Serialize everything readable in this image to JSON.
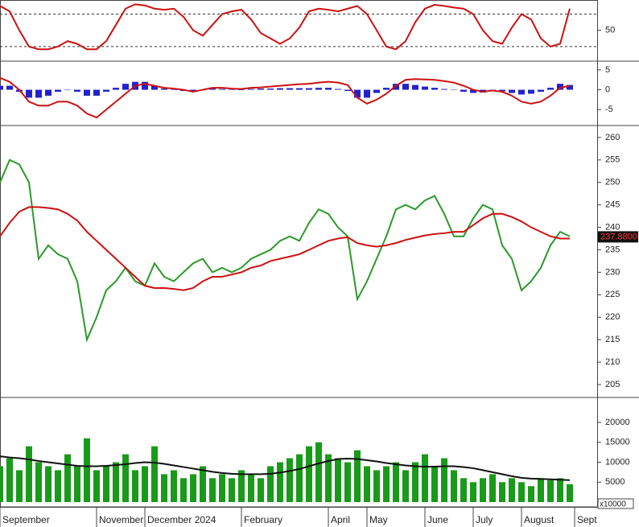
{
  "x_axis": {
    "labels": [
      {
        "label": "September",
        "index": 0
      },
      {
        "label": "November",
        "index": 10
      },
      {
        "label": "December 2024",
        "index": 15
      },
      {
        "label": "February",
        "index": 25
      },
      {
        "label": "April",
        "index": 34
      },
      {
        "label": "May",
        "index": 38
      },
      {
        "label": "June",
        "index": 44
      },
      {
        "label": "July",
        "index": 49
      },
      {
        "label": "August",
        "index": 54
      },
      {
        "label": "Sept",
        "index": 59.5
      }
    ]
  },
  "chart_data": [
    {
      "type": "line",
      "ylim": [
        -4,
        103
      ],
      "yticks": [
        50
      ],
      "levels": [
        80,
        20
      ],
      "series": [
        {
          "color": "#cc1111",
          "values": [
            95,
            85,
            50,
            20,
            15,
            15,
            20,
            30,
            25,
            15,
            15,
            30,
            60,
            90,
            98,
            96,
            90,
            88,
            90,
            75,
            50,
            40,
            60,
            80,
            85,
            88,
            70,
            45,
            35,
            25,
            35,
            55,
            85,
            90,
            88,
            85,
            90,
            95,
            80,
            50,
            20,
            15,
            30,
            65,
            90,
            97,
            95,
            92,
            90,
            80,
            50,
            30,
            25,
            55,
            80,
            70,
            35,
            20,
            25,
            90
          ]
        }
      ]
    },
    {
      "type": "line",
      "ylim": [
        -8.6,
        6.8
      ],
      "yticks": [
        5,
        0,
        -5
      ],
      "histogram_color": "#2222cc",
      "histogram": [
        1,
        1,
        -0.5,
        -2,
        -2,
        -1.5,
        -0.5,
        0,
        -0.5,
        -1.5,
        -1.5,
        -0.5,
        0.5,
        1.5,
        2,
        2,
        1,
        0.3,
        0,
        -0.3,
        -0.3,
        0,
        0.3,
        0.2,
        0,
        0,
        0.2,
        0.3,
        0.3,
        0.4,
        0.4,
        0.4,
        0.4,
        0.5,
        0.5,
        0.2,
        -0.3,
        -2,
        -2,
        -0.8,
        0.5,
        1.5,
        1.5,
        1.2,
        0.8,
        0.5,
        0.2,
        0,
        -0.5,
        -0.8,
        -0.7,
        -0.3,
        -0.4,
        -0.8,
        -1.2,
        -1,
        -0.5,
        0.5,
        1.5,
        1.2
      ],
      "series": [
        {
          "color": "#cc1111",
          "values": [
            3,
            2,
            0,
            -3,
            -4,
            -4,
            -3,
            -3,
            -4,
            -6,
            -7,
            -5,
            -3,
            -1,
            1,
            1.5,
            1,
            0.5,
            0.3,
            0,
            -0.5,
            0,
            0.5,
            0.5,
            0.3,
            0.2,
            0.5,
            0.6,
            0.8,
            1,
            1.2,
            1.4,
            1.5,
            1.8,
            2,
            1.8,
            1.2,
            -2,
            -3.5,
            -2.5,
            -1,
            1,
            2.5,
            2.7,
            2.6,
            2.5,
            2.2,
            1.8,
            1,
            0,
            -0.5,
            -0.2,
            -0.5,
            -1.5,
            -3,
            -3.5,
            -3,
            -1.5,
            0.5,
            1
          ]
        }
      ]
    },
    {
      "type": "line",
      "ylim": [
        202.5,
        262.3
      ],
      "yticks": [
        205,
        210,
        215,
        220,
        225,
        230,
        235,
        240,
        245,
        250,
        255,
        260
      ],
      "last_price": {
        "value": 237.88,
        "label": "237.8800"
      },
      "series": [
        {
          "color": "#2a9a2a",
          "values": [
            250,
            255,
            254,
            250,
            233,
            236,
            234,
            233,
            228,
            215,
            220,
            226,
            228,
            231,
            228,
            227,
            232,
            229,
            228,
            230,
            232,
            233,
            230,
            231,
            230,
            231,
            233,
            234,
            235,
            237,
            238,
            237,
            241,
            244,
            243,
            240,
            238,
            224,
            228,
            233,
            238,
            244,
            245,
            244,
            246,
            247,
            243,
            238,
            238,
            242,
            245,
            244,
            236,
            233,
            226,
            228,
            231,
            236,
            239,
            238
          ]
        },
        {
          "color": "#cc1111",
          "values": [
            238,
            241,
            243.5,
            244.5,
            244.5,
            244.3,
            244,
            243,
            241.5,
            239,
            237,
            235,
            233,
            231,
            229,
            227,
            226.5,
            226.5,
            226.3,
            226,
            226.5,
            228,
            229,
            229,
            229.5,
            230,
            231,
            231.5,
            232.5,
            233,
            233.5,
            234,
            235,
            236,
            237,
            237.5,
            237.8,
            236.5,
            236,
            235.7,
            236,
            236.5,
            237.2,
            237.7,
            238.2,
            238.5,
            238.7,
            239,
            239,
            240.5,
            242,
            243,
            243,
            242.3,
            241.3,
            240,
            239,
            238,
            237.5,
            237.5
          ]
        }
      ]
    },
    {
      "type": "bar",
      "ylim": [
        -800,
        25850
      ],
      "yticks": [
        0,
        5000,
        10000,
        15000,
        20000
      ],
      "unit": "x10000",
      "series": [
        {
          "color": "#1a9a1a",
          "values": [
            9000,
            11000,
            8000,
            14000,
            10000,
            9000,
            8000,
            12000,
            9000,
            16000,
            8000,
            9000,
            10000,
            12000,
            8000,
            9000,
            14000,
            7000,
            8000,
            6000,
            7000,
            9000,
            6000,
            7000,
            6000,
            8000,
            7000,
            6000,
            9000,
            10000,
            11000,
            12000,
            14000,
            15000,
            12000,
            11000,
            10000,
            13000,
            9000,
            8000,
            9000,
            10000,
            8000,
            10000,
            12000,
            9000,
            11000,
            8000,
            6000,
            5000,
            6000,
            7000,
            5000,
            6000,
            5000,
            4000,
            6000,
            5500,
            6000,
            4500
          ]
        },
        {
          "color": "#111111",
          "values": [
            11500,
            11200,
            11000,
            10700,
            10300,
            10000,
            9700,
            9400,
            9100,
            9000,
            9000,
            9100,
            9300,
            9500,
            9800,
            10000,
            9900,
            9600,
            9200,
            8800,
            8400,
            8000,
            7600,
            7300,
            7100,
            7000,
            7000,
            7000,
            7100,
            7400,
            7800,
            8300,
            9000,
            9700,
            10300,
            10800,
            10900,
            10800,
            10500,
            10200,
            9800,
            9500,
            9200,
            9000,
            8900,
            8900,
            9000,
            9000,
            8800,
            8500,
            8000,
            7500,
            7000,
            6500,
            6100,
            5900,
            5800,
            5700,
            5600,
            5500
          ]
        }
      ]
    }
  ]
}
